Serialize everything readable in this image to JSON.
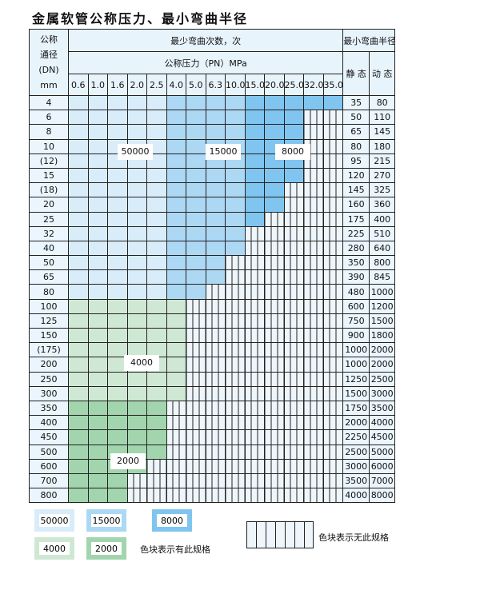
{
  "title": "金属软管公称压力、最小弯曲半径",
  "header": {
    "dn_label": [
      "公称",
      "通径",
      "(DN)",
      "mm"
    ],
    "cycles_label": "最少弯曲次数，次",
    "pn_label": "公称压力（PN）MPa",
    "radius_label": "最小弯曲半径",
    "static_label": "静 态",
    "dynamic_label": "动 态",
    "pressures": [
      "0.6",
      "1.0",
      "1.6",
      "2.0",
      "2.5",
      "4.0",
      "5.0",
      "6.3",
      "10.0",
      "15.0",
      "20.0",
      "25.0",
      "32.0",
      "35.0"
    ]
  },
  "rows": [
    {
      "dn": "4",
      "available": 14,
      "static": "35",
      "dynamic": "80",
      "group": "blue"
    },
    {
      "dn": "6",
      "available": 12,
      "static": "50",
      "dynamic": "110",
      "group": "blue"
    },
    {
      "dn": "8",
      "available": 12,
      "static": "65",
      "dynamic": "145",
      "group": "blue"
    },
    {
      "dn": "10",
      "available": 12,
      "static": "80",
      "dynamic": "180",
      "group": "blue"
    },
    {
      "dn": "(12)",
      "available": 12,
      "static": "95",
      "dynamic": "215",
      "group": "blue"
    },
    {
      "dn": "15",
      "available": 12,
      "static": "120",
      "dynamic": "270",
      "group": "blue"
    },
    {
      "dn": "(18)",
      "available": 11,
      "static": "145",
      "dynamic": "325",
      "group": "blue"
    },
    {
      "dn": "20",
      "available": 11,
      "static": "160",
      "dynamic": "360",
      "group": "blue"
    },
    {
      "dn": "25",
      "available": 10,
      "static": "175",
      "dynamic": "400",
      "group": "blue"
    },
    {
      "dn": "32",
      "available": 9,
      "static": "225",
      "dynamic": "510",
      "group": "blue"
    },
    {
      "dn": "40",
      "available": 9,
      "static": "280",
      "dynamic": "640",
      "group": "blue"
    },
    {
      "dn": "50",
      "available": 8,
      "static": "350",
      "dynamic": "800",
      "group": "blue"
    },
    {
      "dn": "65",
      "available": 8,
      "static": "390",
      "dynamic": "845",
      "group": "blue"
    },
    {
      "dn": "80",
      "available": 7,
      "static": "480",
      "dynamic": "1000",
      "group": "blue"
    },
    {
      "dn": "100",
      "available": 6,
      "static": "600",
      "dynamic": "1200",
      "group": "g0"
    },
    {
      "dn": "125",
      "available": 6,
      "static": "750",
      "dynamic": "1500",
      "group": "g0"
    },
    {
      "dn": "150",
      "available": 6,
      "static": "900",
      "dynamic": "1800",
      "group": "g0"
    },
    {
      "dn": "(175)",
      "available": 6,
      "static": "1000",
      "dynamic": "2000",
      "group": "g0"
    },
    {
      "dn": "200",
      "available": 6,
      "static": "1000",
      "dynamic": "2000",
      "group": "g0"
    },
    {
      "dn": "250",
      "available": 6,
      "static": "1250",
      "dynamic": "2500",
      "group": "g0"
    },
    {
      "dn": "300",
      "available": 6,
      "static": "1500",
      "dynamic": "3000",
      "group": "g0"
    },
    {
      "dn": "350",
      "available": 5,
      "static": "1750",
      "dynamic": "3500",
      "group": "g1"
    },
    {
      "dn": "400",
      "available": 5,
      "static": "2000",
      "dynamic": "4000",
      "group": "g1"
    },
    {
      "dn": "450",
      "available": 5,
      "static": "2250",
      "dynamic": "4500",
      "group": "g1"
    },
    {
      "dn": "500",
      "available": 5,
      "static": "2500",
      "dynamic": "5000",
      "group": "g1"
    },
    {
      "dn": "600",
      "available": 4,
      "static": "3000",
      "dynamic": "6000",
      "group": "g1"
    },
    {
      "dn": "700",
      "available": 3,
      "static": "3500",
      "dynamic": "7000",
      "group": "g1"
    },
    {
      "dn": "800",
      "available": 3,
      "static": "4000",
      "dynamic": "8000",
      "group": "g1"
    }
  ],
  "region_labels": {
    "a": "50000",
    "b": "15000",
    "c": "8000",
    "d": "4000",
    "e": "2000"
  },
  "legend": {
    "items": [
      "50000",
      "15000",
      "8000",
      "4000",
      "2000"
    ],
    "available_text": "色块表示有此规格",
    "unavailable_text": "色块表示无此规格"
  },
  "colors": {
    "blue_light": "#d8ecf9",
    "blue_mid": "#acd8f4",
    "blue_dark": "#80c5ef",
    "green_light": "#cfe8d4",
    "green_dark": "#a2d5ad"
  }
}
